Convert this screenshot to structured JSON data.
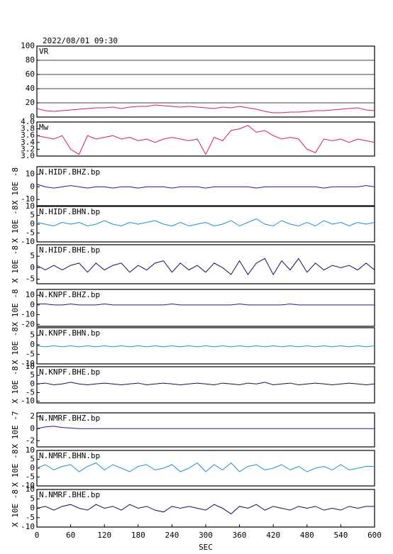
{
  "chart_data": {
    "type": "line",
    "title": "2022/08/01 09:30",
    "xlabel": "SEC",
    "x": [
      0,
      15,
      30,
      45,
      60,
      75,
      90,
      105,
      120,
      135,
      150,
      165,
      180,
      195,
      210,
      225,
      240,
      255,
      270,
      285,
      300,
      315,
      330,
      345,
      360,
      375,
      390,
      405,
      420,
      435,
      450,
      465,
      480,
      495,
      510,
      525,
      540,
      555,
      570,
      585,
      600
    ],
    "xlim": [
      0,
      600
    ],
    "xticks": [
      0,
      60,
      120,
      180,
      240,
      300,
      360,
      420,
      480,
      540,
      600
    ],
    "panels": [
      {
        "label": "VR",
        "color": "#d81e50",
        "grid": true,
        "ylim": [
          0,
          100
        ],
        "yticks": [
          0,
          20,
          40,
          60,
          80,
          100
        ],
        "values": [
          12,
          9,
          8,
          9,
          10,
          11,
          12,
          13,
          13,
          14,
          12,
          14,
          15,
          15,
          17,
          16,
          15,
          14,
          15,
          14,
          13,
          12,
          14,
          13,
          15,
          13,
          11,
          8,
          6,
          6,
          7,
          7,
          8,
          9,
          9,
          10,
          11,
          12,
          13,
          10,
          9
        ]
      },
      {
        "label": "Mw",
        "color": "#d81e50",
        "grid": false,
        "ylim": [
          3,
          4
        ],
        "yticks": [
          {
            "value": 3,
            "label": "3.0"
          },
          3.2,
          3.4,
          3.6,
          3.8,
          {
            "value": 4,
            "label": "4.0"
          }
        ],
        "values": [
          3.6,
          3.55,
          3.5,
          3.6,
          3.2,
          3.05,
          3.6,
          3.5,
          3.55,
          3.6,
          3.5,
          3.55,
          3.45,
          3.5,
          3.4,
          3.5,
          3.55,
          3.5,
          3.45,
          3.5,
          3.05,
          3.55,
          3.45,
          3.75,
          3.8,
          3.9,
          3.7,
          3.75,
          3.6,
          3.5,
          3.55,
          3.5,
          3.2,
          3.1,
          3.5,
          3.45,
          3.5,
          3.4,
          3.5,
          3.45,
          3.4
        ]
      },
      {
        "label": "N.HIDF.BHZ.bp",
        "ylabel": "X 10E -8",
        "color": "#1a1aa8",
        "grid": false,
        "ylim": [
          -15,
          16
        ],
        "yticks": [
          -10,
          0,
          10
        ],
        "values": [
          2,
          0,
          -1,
          0,
          1,
          0,
          -1,
          0,
          0,
          -1,
          0,
          0,
          -1,
          0,
          0,
          0,
          -1,
          0,
          0,
          0,
          -1,
          0,
          0,
          0,
          0,
          0,
          -1,
          0,
          0,
          0,
          0,
          0,
          0,
          0,
          -1,
          0,
          0,
          0,
          0,
          1,
          0
        ]
      },
      {
        "label": "N.HIDF.BHN.bp",
        "ylabel": "X 10E -8",
        "color": "#1e8fd2",
        "grid": false,
        "ylim": [
          -10,
          10
        ],
        "yticks": [
          -10,
          -5,
          0,
          5,
          10
        ],
        "values": [
          1,
          0,
          -1,
          1,
          0,
          1,
          -1,
          0,
          2,
          0,
          -1,
          1,
          0,
          1,
          2,
          0,
          -1,
          1,
          -1,
          0,
          1,
          -1,
          0,
          2,
          -1,
          1,
          3,
          0,
          -1,
          2,
          0,
          -1,
          1,
          -1,
          2,
          0,
          1,
          -1,
          1,
          0,
          1
        ]
      },
      {
        "label": "N.HIDF.BHE.bp",
        "ylabel": "X 10E -8",
        "color": "#10105c",
        "grid": false,
        "ylim": [
          -7,
          10
        ],
        "yticks": [
          -5,
          0,
          5
        ],
        "values": [
          1,
          -1,
          1,
          -1,
          1,
          2,
          -2,
          2,
          -1,
          1,
          2,
          -2,
          1,
          -1,
          2,
          3,
          -2,
          2,
          -1,
          1,
          -2,
          2,
          0,
          -3,
          3,
          -3,
          2,
          4,
          -3,
          3,
          -1,
          4,
          -2,
          2,
          -1,
          1,
          0,
          1,
          -1,
          2,
          -1
        ]
      },
      {
        "label": "N.KNPF.BHZ.bp",
        "ylabel": "X 10E -8",
        "color": "#1a1aa8",
        "grid": false,
        "ylim": [
          -22,
          16
        ],
        "yticks": [
          -20,
          -10,
          0,
          10
        ],
        "values": [
          1,
          1,
          0,
          0,
          1,
          0,
          0,
          0,
          1,
          0,
          0,
          0,
          0,
          0,
          0,
          0,
          1,
          0,
          0,
          0,
          0,
          0,
          0,
          0,
          1,
          0,
          0,
          0,
          0,
          0,
          1,
          0,
          0,
          0,
          0,
          0,
          0,
          0,
          0,
          0,
          0
        ]
      },
      {
        "label": "N.KNPF.BHN.bp",
        "ylabel": "X 10E -8",
        "color": "#1e8fd2",
        "grid": false,
        "ylim": [
          -10,
          9
        ],
        "yticks": [
          -10,
          -5,
          0,
          5
        ],
        "values": [
          -0.5,
          -1,
          -0.5,
          -1,
          -0.5,
          -1,
          -0.5,
          -1,
          -0.5,
          -1,
          -0.5,
          -1,
          -0.5,
          -1,
          -0.5,
          -1,
          -0.5,
          -1,
          -0.5,
          -1,
          -0.5,
          -1,
          -0.5,
          -1,
          -0.5,
          -1,
          -0.5,
          -1,
          -0.5,
          -1,
          -0.5,
          -1,
          -0.5,
          -1,
          -0.5,
          -1,
          -0.5,
          -1,
          -0.5,
          -1,
          -0.5
        ]
      },
      {
        "label": "N.KNPF.BHE.bp",
        "ylabel": "X 10E -8",
        "color": "#10105c",
        "grid": false,
        "ylim": [
          -11,
          10
        ],
        "yticks": [
          -10,
          -5,
          0,
          5,
          10
        ],
        "values": [
          0,
          0.5,
          -0.5,
          0,
          1,
          0,
          -0.5,
          0,
          0.5,
          0,
          -0.5,
          0,
          0.5,
          -0.5,
          0,
          0.5,
          0,
          -0.5,
          0,
          0.5,
          0,
          -0.5,
          0.5,
          0,
          -0.5,
          0.5,
          0,
          1,
          -0.5,
          0,
          0.5,
          -0.5,
          0,
          0.5,
          0,
          -0.5,
          0,
          0.5,
          0,
          -0.5,
          0
        ]
      },
      {
        "label": "N.NMRF.BHZ.bp",
        "ylabel": "X 10E -7",
        "color": "#1a1aa8",
        "grid": false,
        "ylim": [
          -3,
          2.6
        ],
        "yticks": [
          -2,
          0,
          2
        ],
        "values": [
          0,
          0.3,
          0.4,
          0.2,
          0.1,
          0,
          0,
          0,
          0,
          0,
          0,
          0,
          0,
          0,
          0,
          0,
          0,
          0,
          0,
          0,
          0,
          0,
          0,
          0,
          0,
          0,
          0,
          0,
          0,
          0,
          0,
          0,
          0,
          0,
          0,
          0,
          0,
          0,
          0,
          0,
          0
        ]
      },
      {
        "label": "N.NMRF.BHN.bp",
        "ylabel": "X 10E -8",
        "color": "#1e8fd2",
        "grid": false,
        "ylim": [
          -10,
          10
        ],
        "yticks": [
          -10,
          -5,
          0,
          5,
          10
        ],
        "values": [
          0,
          2,
          -1,
          1,
          2,
          -2,
          1,
          3,
          -1,
          2,
          0,
          -2,
          1,
          2,
          -1,
          0,
          2,
          -2,
          0,
          3,
          -2,
          2,
          -1,
          3,
          -2,
          1,
          2,
          -1,
          0,
          2,
          -1,
          1,
          -2,
          0,
          1,
          -1,
          2,
          -1,
          0,
          1,
          1
        ]
      },
      {
        "label": "N.NMRF.BHE.bp",
        "ylabel": "X 10E -8",
        "color": "#10105c",
        "grid": false,
        "ylim": [
          -10,
          10
        ],
        "yticks": [
          -10,
          -5,
          0,
          5,
          10
        ],
        "values": [
          0,
          1,
          -1,
          1,
          2,
          0,
          -1,
          2,
          0,
          1,
          -1,
          2,
          0,
          1,
          -1,
          -2,
          1,
          0,
          1,
          0,
          -1,
          2,
          0,
          -3,
          1,
          0,
          2,
          -1,
          1,
          0,
          -1,
          1,
          0,
          1,
          -1,
          0,
          -1,
          1,
          0,
          1,
          1
        ]
      }
    ]
  }
}
